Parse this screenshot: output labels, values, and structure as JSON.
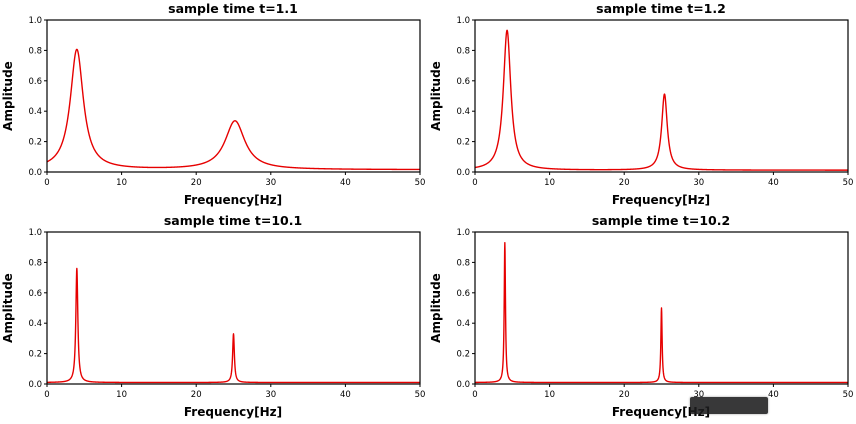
{
  "figure": {
    "background": "#ffffff",
    "line_color": "#e60000",
    "axis_color": "#000000"
  },
  "chart_data": [
    {
      "type": "line",
      "title": "sample time t=1.1",
      "xlabel": "Frequency[Hz]",
      "ylabel": "Amplitude",
      "xlim": [
        0,
        50
      ],
      "ylim": [
        0,
        1
      ],
      "xticks": [
        0,
        10,
        20,
        30,
        40,
        50
      ],
      "yticks": [
        0,
        0.2,
        0.4,
        0.6,
        0.8,
        1.0
      ],
      "yticklabels": [
        "0.0",
        "0.2",
        "0.4",
        "0.6",
        "0.8",
        "1.0"
      ],
      "grid": false,
      "legend": "none",
      "baseline": 0.015,
      "peaks": [
        {
          "center": 4.0,
          "amplitude": 0.79,
          "width": 1.05
        },
        {
          "center": 25.2,
          "amplitude": 0.32,
          "width": 1.6
        }
      ]
    },
    {
      "type": "line",
      "title": "sample time t=1.2",
      "xlabel": "Frequency[Hz]",
      "ylabel": "Amplitude",
      "xlim": [
        0,
        50
      ],
      "ylim": [
        0,
        1
      ],
      "xticks": [
        0,
        10,
        20,
        30,
        40,
        50
      ],
      "yticks": [
        0,
        0.2,
        0.4,
        0.6,
        0.8,
        1.0
      ],
      "yticklabels": [
        "0.0",
        "0.2",
        "0.4",
        "0.6",
        "0.8",
        "1.0"
      ],
      "grid": false,
      "legend": "none",
      "baseline": 0.012,
      "peaks": [
        {
          "center": 4.3,
          "amplitude": 0.92,
          "width": 0.6
        },
        {
          "center": 25.4,
          "amplitude": 0.5,
          "width": 0.45
        }
      ]
    },
    {
      "type": "line",
      "title": "sample time t=10.1",
      "xlabel": "Frequency[Hz]",
      "ylabel": "Amplitude",
      "xlim": [
        0,
        50
      ],
      "ylim": [
        0,
        1
      ],
      "xticks": [
        0,
        10,
        20,
        30,
        40,
        50
      ],
      "yticks": [
        0,
        0.2,
        0.4,
        0.6,
        0.8,
        1.0
      ],
      "yticklabels": [
        "0.0",
        "0.2",
        "0.4",
        "0.6",
        "0.8",
        "1.0"
      ],
      "grid": false,
      "legend": "none",
      "baseline": 0.01,
      "peaks": [
        {
          "center": 4.0,
          "amplitude": 0.75,
          "width": 0.16
        },
        {
          "center": 25.0,
          "amplitude": 0.32,
          "width": 0.14
        }
      ]
    },
    {
      "type": "line",
      "title": "sample time t=10.2",
      "xlabel": "Frequency[Hz]",
      "ylabel": "Amplitude",
      "xlim": [
        0,
        50
      ],
      "ylim": [
        0,
        1
      ],
      "xticks": [
        0,
        10,
        20,
        30,
        40,
        50
      ],
      "yticks": [
        0,
        0.2,
        0.4,
        0.6,
        0.8,
        1.0
      ],
      "yticklabels": [
        "0.0",
        "0.2",
        "0.4",
        "0.6",
        "0.8",
        "1.0"
      ],
      "grid": false,
      "legend": "none",
      "baseline": 0.01,
      "peaks": [
        {
          "center": 4.0,
          "amplitude": 0.92,
          "width": 0.1
        },
        {
          "center": 25.0,
          "amplitude": 0.49,
          "width": 0.1
        }
      ]
    }
  ]
}
